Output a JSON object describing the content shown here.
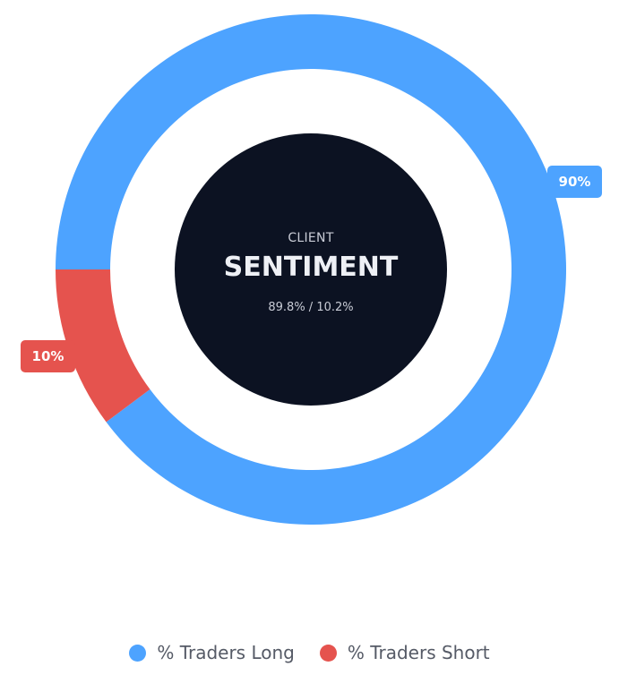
{
  "chart_data": {
    "type": "pie",
    "categories": [
      "% Traders Long",
      "% Traders Short"
    ],
    "values": [
      89.8,
      10.2
    ],
    "data_labels": [
      "90%",
      "10%"
    ],
    "colors": [
      "#4da3ff",
      "#e5534e"
    ],
    "center": {
      "subtitle": "CLIENT",
      "title": "SENTIMENT",
      "values_text": "89.8% / 10.2%",
      "background": "#0c1222"
    },
    "legend": {
      "placement": "bottom",
      "items": [
        {
          "label": "% Traders Long",
          "color": "#4da3ff"
        },
        {
          "label": "% Traders Short",
          "color": "#e5534e"
        }
      ]
    }
  }
}
